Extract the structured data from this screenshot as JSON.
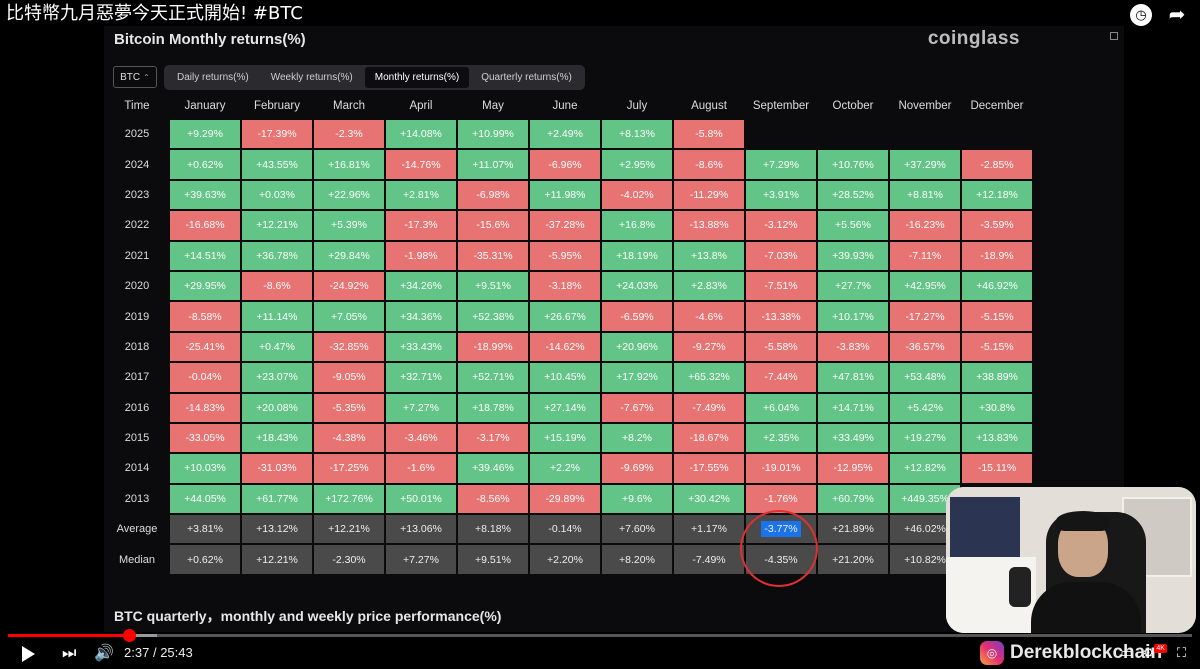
{
  "video": {
    "title": "比特幣九月惡夢今天正式開始! #BTC",
    "current_time": "2:37",
    "separator": "/",
    "duration": "25:43",
    "progress_fraction": 0.102,
    "buffered_fraction": 0.126,
    "channel_name": "Derekblockchain",
    "quality_badge": "4K"
  },
  "page": {
    "heading": "Bitcoin Monthly returns(%)",
    "brand": "coinglass",
    "coin_select": "BTC",
    "tabs": [
      {
        "label": "Daily returns(%)",
        "active": false
      },
      {
        "label": "Weekly returns(%)",
        "active": false
      },
      {
        "label": "Monthly returns(%)",
        "active": true
      },
      {
        "label": "Quarterly returns(%)",
        "active": false
      }
    ],
    "section_heading": "BTC quarterly，monthly and weekly price performance(%)"
  },
  "table": {
    "corner_label": "Time",
    "months": [
      "January",
      "February",
      "March",
      "April",
      "May",
      "June",
      "July",
      "August",
      "September",
      "October",
      "November",
      "December"
    ],
    "rows": [
      {
        "label": "2025",
        "values": [
          "+9.29%",
          "-17.39%",
          "-2.3%",
          "+14.08%",
          "+10.99%",
          "+2.49%",
          "+8.13%",
          "-5.8%",
          "",
          "",
          "",
          ""
        ]
      },
      {
        "label": "2024",
        "values": [
          "+0.62%",
          "+43.55%",
          "+16.81%",
          "-14.76%",
          "+11.07%",
          "-6.96%",
          "+2.95%",
          "-8.6%",
          "+7.29%",
          "+10.76%",
          "+37.29%",
          "-2.85%"
        ]
      },
      {
        "label": "2023",
        "values": [
          "+39.63%",
          "+0.03%",
          "+22.96%",
          "+2.81%",
          "-6.98%",
          "+11.98%",
          "-4.02%",
          "-11.29%",
          "+3.91%",
          "+28.52%",
          "+8.81%",
          "+12.18%"
        ]
      },
      {
        "label": "2022",
        "values": [
          "-16.68%",
          "+12.21%",
          "+5.39%",
          "-17.3%",
          "-15.6%",
          "-37.28%",
          "+16.8%",
          "-13.88%",
          "-3.12%",
          "+5.56%",
          "-16.23%",
          "-3.59%"
        ]
      },
      {
        "label": "2021",
        "values": [
          "+14.51%",
          "+36.78%",
          "+29.84%",
          "-1.98%",
          "-35.31%",
          "-5.95%",
          "+18.19%",
          "+13.8%",
          "-7.03%",
          "+39.93%",
          "-7.11%",
          "-18.9%"
        ]
      },
      {
        "label": "2020",
        "values": [
          "+29.95%",
          "-8.6%",
          "-24.92%",
          "+34.26%",
          "+9.51%",
          "-3.18%",
          "+24.03%",
          "+2.83%",
          "-7.51%",
          "+27.7%",
          "+42.95%",
          "+46.92%"
        ]
      },
      {
        "label": "2019",
        "values": [
          "-8.58%",
          "+11.14%",
          "+7.05%",
          "+34.36%",
          "+52.38%",
          "+26.67%",
          "-6.59%",
          "-4.6%",
          "-13.38%",
          "+10.17%",
          "-17.27%",
          "-5.15%"
        ]
      },
      {
        "label": "2018",
        "values": [
          "-25.41%",
          "+0.47%",
          "-32.85%",
          "+33.43%",
          "-18.99%",
          "-14.62%",
          "+20.96%",
          "-9.27%",
          "-5.58%",
          "-3.83%",
          "-36.57%",
          "-5.15%"
        ]
      },
      {
        "label": "2017",
        "values": [
          "-0.04%",
          "+23.07%",
          "-9.05%",
          "+32.71%",
          "+52.71%",
          "+10.45%",
          "+17.92%",
          "+65.32%",
          "-7.44%",
          "+47.81%",
          "+53.48%",
          "+38.89%"
        ]
      },
      {
        "label": "2016",
        "values": [
          "-14.83%",
          "+20.08%",
          "-5.35%",
          "+7.27%",
          "+18.78%",
          "+27.14%",
          "-7.67%",
          "-7.49%",
          "+6.04%",
          "+14.71%",
          "+5.42%",
          "+30.8%"
        ]
      },
      {
        "label": "2015",
        "values": [
          "-33.05%",
          "+18.43%",
          "-4.38%",
          "-3.46%",
          "-3.17%",
          "+15.19%",
          "+8.2%",
          "-18.67%",
          "+2.35%",
          "+33.49%",
          "+19.27%",
          "+13.83%"
        ]
      },
      {
        "label": "2014",
        "values": [
          "+10.03%",
          "-31.03%",
          "-17.25%",
          "-1.6%",
          "+39.46%",
          "+2.2%",
          "-9.69%",
          "-17.55%",
          "-19.01%",
          "-12.95%",
          "+12.82%",
          "-15.11%"
        ]
      },
      {
        "label": "2013",
        "values": [
          "+44.05%",
          "+61.77%",
          "+172.76%",
          "+50.01%",
          "-8.56%",
          "-29.89%",
          "+9.6%",
          "+30.42%",
          "-1.76%",
          "+60.79%",
          "+449.35%",
          ""
        ]
      }
    ],
    "stats": [
      {
        "label": "Average",
        "values": [
          "+3.81%",
          "+13.12%",
          "+12.21%",
          "+13.06%",
          "+8.18%",
          "-0.14%",
          "+7.60%",
          "+1.17%",
          "-3.77%",
          "+21.89%",
          "+46.02%",
          ""
        ]
      },
      {
        "label": "Median",
        "values": [
          "+0.62%",
          "+12.21%",
          "-2.30%",
          "+7.27%",
          "+9.51%",
          "+2.20%",
          "+8.20%",
          "-7.49%",
          "-4.35%",
          "+21.20%",
          "+10.82%",
          ""
        ]
      }
    ],
    "highlight": {
      "row": "Average",
      "month_index": 8
    }
  },
  "colors": {
    "positive": "#62c486",
    "negative": "#e77373",
    "stat": "#4a4a4a",
    "annotation": "#e03030",
    "progress": "#ff0000"
  }
}
